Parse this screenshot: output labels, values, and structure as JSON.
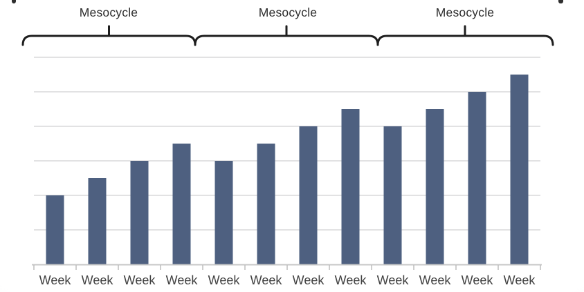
{
  "mesocycles": [
    {
      "label": "Mesocycle"
    },
    {
      "label": "Mesocycle"
    },
    {
      "label": "Mesocycle"
    }
  ],
  "chart_data": {
    "type": "bar",
    "title": "",
    "xlabel": "",
    "ylabel": "",
    "categories": [
      "Week",
      "Week",
      "Week",
      "Week",
      "Week",
      "Week",
      "Week",
      "Week",
      "Week",
      "Week",
      "Week",
      "Week"
    ],
    "values": [
      2,
      2.5,
      3,
      3.5,
      3,
      3.5,
      4,
      4.5,
      4,
      4.5,
      5,
      5.5
    ],
    "ylim": [
      0,
      6
    ],
    "grid": true,
    "legend": false,
    "annotations": [
      {
        "label": "Mesocycle",
        "bar_indices": [
          0,
          3
        ]
      },
      {
        "label": "Mesocycle",
        "bar_indices": [
          4,
          7
        ]
      },
      {
        "label": "Mesocycle",
        "bar_indices": [
          8,
          11
        ]
      }
    ],
    "bar_color": "#4e6080",
    "grid_color": "#d9d9da",
    "axis_color": "#c7c7c7",
    "tick_color": "#bdbdbd",
    "label_color": "#414141",
    "brace_color": "#1e1e1e",
    "annotation_text_color": "#2d2d2d"
  }
}
